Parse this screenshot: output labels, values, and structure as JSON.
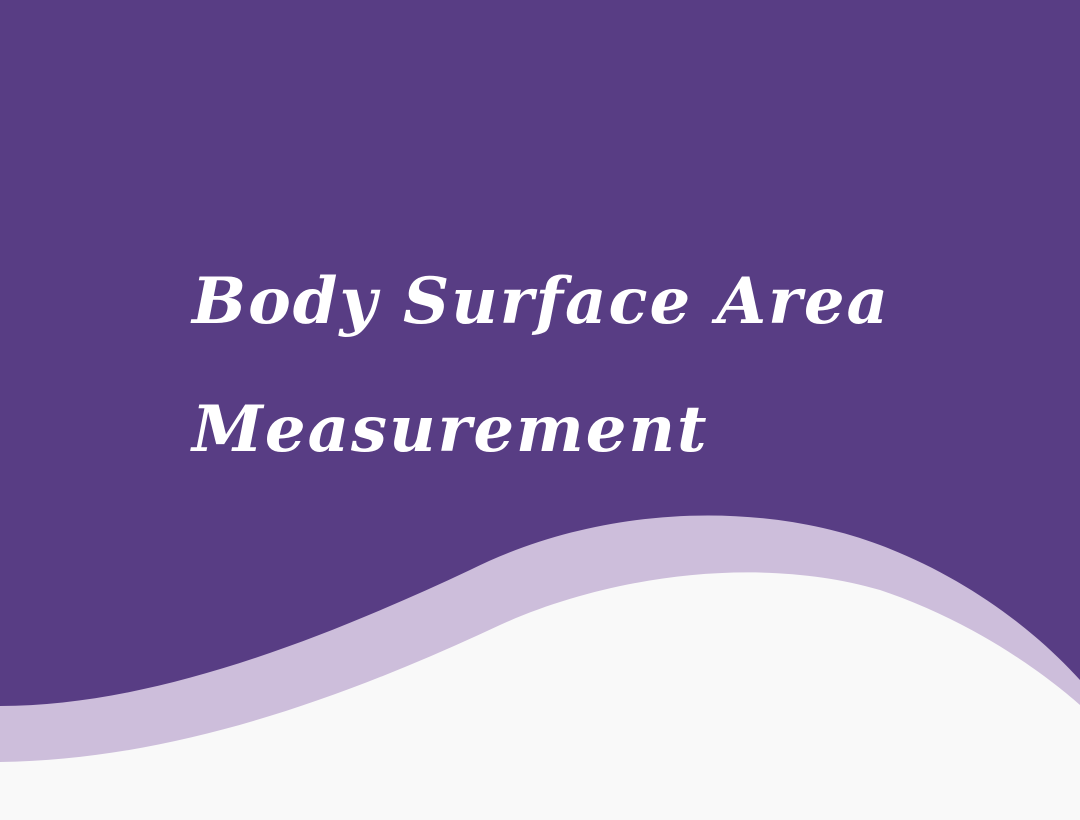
{
  "title": {
    "line1": "Body Surface Area",
    "line2": "Measurement"
  },
  "colors": {
    "background_purple": "#583d84",
    "wave_lavender": "#cdbedb",
    "bottom_white": "#f9f9f9",
    "title_text": "#ffffff"
  }
}
